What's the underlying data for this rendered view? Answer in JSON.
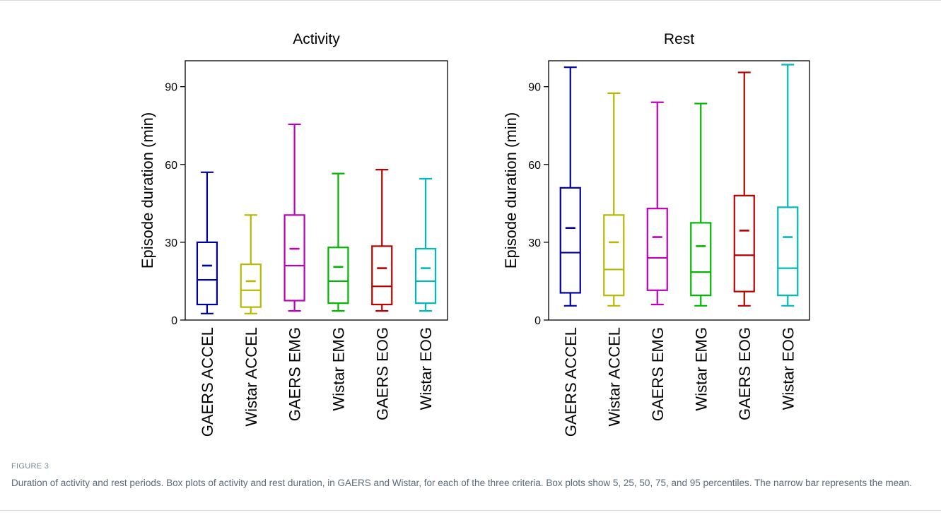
{
  "chart_data": [
    {
      "type": "box",
      "title": "Activity",
      "ylabel": "Episode duration (min)",
      "ylim": [
        0,
        100
      ],
      "yticks": [
        0,
        30,
        60,
        90
      ],
      "categories": [
        "GAERS ACCEL",
        "Wistar ACCEL",
        "GAERS EMG",
        "Wistar EMG",
        "GAERS EOG",
        "Wistar EOG"
      ],
      "colors": [
        "#00009e",
        "#b8b800",
        "#bb00bb",
        "#00b800",
        "#b80000",
        "#00baba"
      ],
      "boxes": [
        {
          "p5": 2.5,
          "p25": 6,
          "median": 15.5,
          "mean": 21,
          "p75": 30,
          "p95": 57
        },
        {
          "p5": 2.5,
          "p25": 5,
          "median": 11.5,
          "mean": 15,
          "p75": 21.5,
          "p95": 40.5
        },
        {
          "p5": 3.5,
          "p25": 7.5,
          "median": 21,
          "mean": 27.5,
          "p75": 40.5,
          "p95": 75.5
        },
        {
          "p5": 3.5,
          "p25": 6.5,
          "median": 15,
          "mean": 20.5,
          "p75": 28,
          "p95": 56.5
        },
        {
          "p5": 3.5,
          "p25": 6,
          "median": 13,
          "mean": 20,
          "p75": 28.5,
          "p95": 58
        },
        {
          "p5": 3.5,
          "p25": 6.5,
          "median": 15,
          "mean": 20,
          "p75": 27.5,
          "p95": 54.5
        }
      ]
    },
    {
      "type": "box",
      "title": "Rest",
      "ylabel": "Episode duration (min)",
      "ylim": [
        0,
        100
      ],
      "yticks": [
        0,
        30,
        60,
        90
      ],
      "categories": [
        "GAERS ACCEL",
        "Wistar ACCEL",
        "GAERS EMG",
        "Wistar EMG",
        "GAERS EOG",
        "Wistar EOG"
      ],
      "colors": [
        "#00009e",
        "#b8b800",
        "#bb00bb",
        "#00b800",
        "#b80000",
        "#00baba"
      ],
      "boxes": [
        {
          "p5": 5.5,
          "p25": 10.5,
          "median": 26,
          "mean": 35.5,
          "p75": 51,
          "p95": 97.5
        },
        {
          "p5": 5.5,
          "p25": 9.5,
          "median": 19.5,
          "mean": 30,
          "p75": 40.5,
          "p95": 87.5
        },
        {
          "p5": 6,
          "p25": 11.5,
          "median": 24,
          "mean": 32,
          "p75": 43,
          "p95": 84
        },
        {
          "p5": 5.5,
          "p25": 9.5,
          "median": 18.5,
          "mean": 28.5,
          "p75": 37.5,
          "p95": 83.5
        },
        {
          "p5": 5.5,
          "p25": 11,
          "median": 25,
          "mean": 34.5,
          "p75": 48,
          "p95": 95.5
        },
        {
          "p5": 5.5,
          "p25": 9.5,
          "median": 20,
          "mean": 32,
          "p75": 43.5,
          "p95": 98.5
        }
      ]
    }
  ],
  "caption": {
    "label": "FIGURE 3",
    "text": "Duration of activity and rest periods. Box plots of activity and rest duration, in GAERS and Wistar, for each of the three criteria. Box plots show 5, 25, 50, 75, and 95 percentiles. The narrow bar represents the mean."
  }
}
